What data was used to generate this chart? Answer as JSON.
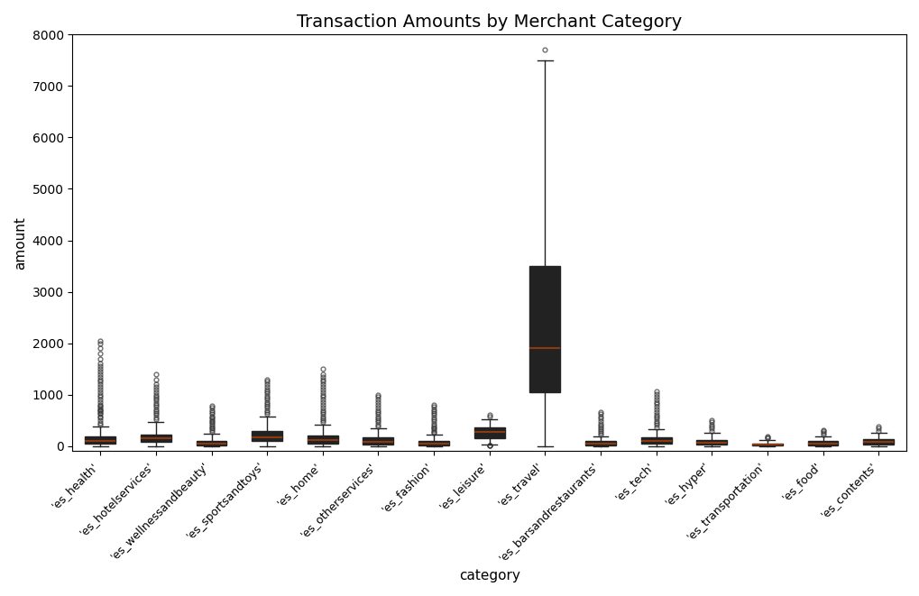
{
  "title": "Transaction Amounts by Merchant Category",
  "xlabel": "category",
  "ylabel": "amount",
  "ylim": [
    -100,
    8000
  ],
  "yticks": [
    0,
    1000,
    2000,
    3000,
    4000,
    5000,
    6000,
    7000,
    8000
  ],
  "box_facecolor": "#3a7ab5",
  "box_edgecolor": "#222222",
  "median_color": "#8b3a0f",
  "whisker_color": "#222222",
  "flier_marker": "o",
  "flier_color": "#333333",
  "categories": [
    "'es_health'",
    "'es_hotelservices'",
    "'es_wellnessandbeauty'",
    "'es_sportsandtoys'",
    "'es_home'",
    "'es_otherservices'",
    "'es_fashion'",
    "'es_leisure'",
    "'es_travel'",
    "'es_barsandrestaurants'",
    "'es_tech'",
    "'es_hyper'",
    "'es_transportation'",
    "'es_food'",
    "'es_contents'"
  ],
  "box_stats": [
    {
      "q1": 50,
      "median": 100,
      "q3": 185,
      "whislo": 0,
      "whishi": 380,
      "fliers": [
        420,
        450,
        500,
        550,
        580,
        620,
        650,
        680,
        700,
        720,
        750,
        780,
        800,
        850,
        900,
        950,
        1000,
        1050,
        1100,
        1150,
        1200,
        1250,
        1300,
        1350,
        1400,
        1450,
        1500,
        1550,
        1600,
        1700,
        1800,
        1900,
        2000,
        2050
      ]
    },
    {
      "q1": 75,
      "median": 145,
      "q3": 225,
      "whislo": 0,
      "whishi": 470,
      "fliers": [
        520,
        560,
        600,
        640,
        680,
        720,
        760,
        800,
        840,
        880,
        920,
        960,
        1000,
        1050,
        1100,
        1150,
        1200,
        1300,
        1400
      ]
    },
    {
      "q1": 18,
      "median": 55,
      "q3": 105,
      "whislo": 0,
      "whishi": 240,
      "fliers": [
        280,
        310,
        340,
        370,
        400,
        430,
        460,
        490,
        520,
        550,
        580,
        620,
        660,
        700,
        740,
        780
      ]
    },
    {
      "q1": 105,
      "median": 170,
      "q3": 285,
      "whislo": 0,
      "whishi": 570,
      "fliers": [
        620,
        660,
        700,
        740,
        780,
        820,
        860,
        900,
        940,
        980,
        1020,
        1060,
        1100,
        1150,
        1200,
        1250,
        1300
      ]
    },
    {
      "q1": 52,
      "median": 115,
      "q3": 205,
      "whislo": 0,
      "whishi": 415,
      "fliers": [
        460,
        500,
        540,
        580,
        620,
        660,
        700,
        750,
        800,
        850,
        900,
        950,
        1000,
        1050,
        1100,
        1150,
        1200,
        1250,
        1300,
        1350,
        1400,
        1500
      ]
    },
    {
      "q1": 32,
      "median": 85,
      "q3": 165,
      "whislo": 0,
      "whishi": 340,
      "fliers": [
        380,
        420,
        460,
        500,
        540,
        580,
        620,
        660,
        700,
        750,
        800,
        850,
        900,
        950,
        1000
      ]
    },
    {
      "q1": 18,
      "median": 50,
      "q3": 100,
      "whislo": 0,
      "whishi": 215,
      "fliers": [
        250,
        280,
        310,
        340,
        370,
        400,
        440,
        480,
        520,
        560,
        600,
        640,
        680,
        720,
        760,
        800
      ]
    },
    {
      "q1": 155,
      "median": 270,
      "q3": 355,
      "whislo": 30,
      "whishi": 520,
      "fliers": [
        575,
        610,
        5,
        10,
        15
      ]
    },
    {
      "q1": 1050,
      "median": 1900,
      "q3": 3500,
      "whislo": 0,
      "whishi": 7500,
      "fliers": [
        7700
      ]
    },
    {
      "q1": 18,
      "median": 48,
      "q3": 95,
      "whislo": 0,
      "whishi": 195,
      "fliers": [
        230,
        260,
        290,
        320,
        360,
        400,
        440,
        490,
        540,
        580,
        620,
        660
      ]
    },
    {
      "q1": 42,
      "median": 95,
      "q3": 165,
      "whislo": 0,
      "whishi": 325,
      "fliers": [
        370,
        410,
        450,
        490,
        530,
        570,
        610,
        660,
        710,
        760,
        810,
        860,
        910,
        960,
        1010,
        1060
      ]
    },
    {
      "q1": 22,
      "median": 60,
      "q3": 125,
      "whislo": 0,
      "whishi": 260,
      "fliers": [
        300,
        340,
        380,
        420,
        460,
        510
      ]
    },
    {
      "q1": 8,
      "median": 22,
      "q3": 50,
      "whislo": 0,
      "whishi": 115,
      "fliers": [
        145,
        165,
        185
      ]
    },
    {
      "q1": 18,
      "median": 45,
      "q3": 95,
      "whislo": 0,
      "whishi": 185,
      "fliers": [
        220,
        255,
        285,
        315
      ]
    },
    {
      "q1": 28,
      "median": 75,
      "q3": 140,
      "whislo": 0,
      "whishi": 265,
      "fliers": [
        300,
        340,
        375
      ]
    }
  ],
  "figsize": [
    10.2,
    6.61
  ],
  "dpi": 100
}
